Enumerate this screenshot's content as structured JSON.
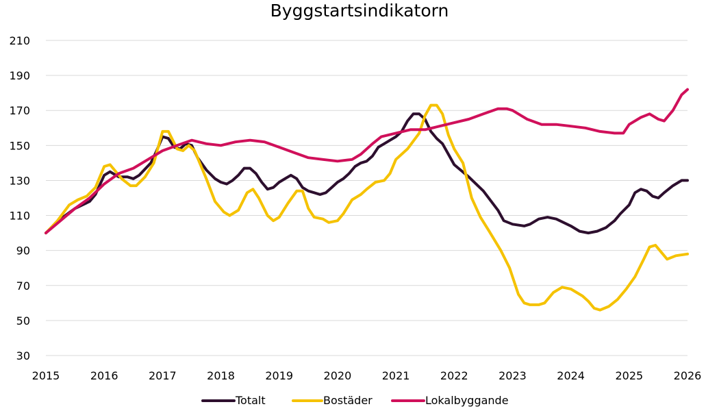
{
  "chart_data": {
    "type": "line",
    "title": "Byggstartsindikatorn",
    "xlabel": "",
    "ylabel": "",
    "ylim": [
      30,
      210
    ],
    "yticks": [
      30,
      50,
      70,
      90,
      110,
      130,
      150,
      170,
      190,
      210
    ],
    "xlim": [
      2015,
      2026
    ],
    "xticks": [
      "2015",
      "2016",
      "2017",
      "2018",
      "2019",
      "2020",
      "2021",
      "2022",
      "2023",
      "2024",
      "2025",
      "2026"
    ],
    "grid": "horizontal",
    "legend": "bottom",
    "series": [
      {
        "name": "Totalt",
        "color": "#2d0f2e",
        "points": [
          [
            2015.0,
            100
          ],
          [
            2015.25,
            108
          ],
          [
            2015.5,
            114
          ],
          [
            2015.75,
            118
          ],
          [
            2015.85,
            122
          ],
          [
            2016.0,
            133
          ],
          [
            2016.1,
            135
          ],
          [
            2016.25,
            132
          ],
          [
            2016.4,
            132
          ],
          [
            2016.5,
            131
          ],
          [
            2016.6,
            133
          ],
          [
            2016.8,
            140
          ],
          [
            2016.9,
            147
          ],
          [
            2017.0,
            155
          ],
          [
            2017.1,
            154
          ],
          [
            2017.2,
            149
          ],
          [
            2017.3,
            148
          ],
          [
            2017.4,
            151
          ],
          [
            2017.5,
            150
          ],
          [
            2017.6,
            143
          ],
          [
            2017.75,
            136
          ],
          [
            2017.9,
            131
          ],
          [
            2018.0,
            129
          ],
          [
            2018.1,
            128
          ],
          [
            2018.2,
            130
          ],
          [
            2018.3,
            133
          ],
          [
            2018.4,
            137
          ],
          [
            2018.5,
            137
          ],
          [
            2018.6,
            134
          ],
          [
            2018.7,
            129
          ],
          [
            2018.8,
            125
          ],
          [
            2018.9,
            126
          ],
          [
            2019.0,
            129
          ],
          [
            2019.1,
            131
          ],
          [
            2019.2,
            133
          ],
          [
            2019.3,
            131
          ],
          [
            2019.4,
            126
          ],
          [
            2019.5,
            124
          ],
          [
            2019.6,
            123
          ],
          [
            2019.7,
            122
          ],
          [
            2019.8,
            123
          ],
          [
            2019.9,
            126
          ],
          [
            2020.0,
            129
          ],
          [
            2020.1,
            131
          ],
          [
            2020.2,
            134
          ],
          [
            2020.3,
            138
          ],
          [
            2020.4,
            140
          ],
          [
            2020.5,
            141
          ],
          [
            2020.6,
            144
          ],
          [
            2020.7,
            149
          ],
          [
            2020.8,
            151
          ],
          [
            2020.9,
            153
          ],
          [
            2021.0,
            155
          ],
          [
            2021.1,
            158
          ],
          [
            2021.2,
            164
          ],
          [
            2021.3,
            168
          ],
          [
            2021.4,
            168
          ],
          [
            2021.5,
            165
          ],
          [
            2021.6,
            158
          ],
          [
            2021.7,
            154
          ],
          [
            2021.8,
            151
          ],
          [
            2021.9,
            145
          ],
          [
            2022.0,
            139
          ],
          [
            2022.25,
            132
          ],
          [
            2022.5,
            124
          ],
          [
            2022.75,
            113
          ],
          [
            2022.85,
            107
          ],
          [
            2023.0,
            105
          ],
          [
            2023.2,
            104
          ],
          [
            2023.3,
            105
          ],
          [
            2023.45,
            108
          ],
          [
            2023.6,
            109
          ],
          [
            2023.75,
            108
          ],
          [
            2024.0,
            104
          ],
          [
            2024.15,
            101
          ],
          [
            2024.3,
            100
          ],
          [
            2024.45,
            101
          ],
          [
            2024.6,
            103
          ],
          [
            2024.75,
            107
          ],
          [
            2024.85,
            111
          ],
          [
            2025.0,
            116
          ],
          [
            2025.1,
            123
          ],
          [
            2025.2,
            125
          ],
          [
            2025.3,
            124
          ],
          [
            2025.4,
            121
          ],
          [
            2025.5,
            120
          ],
          [
            2025.6,
            123
          ],
          [
            2025.75,
            127
          ],
          [
            2025.9,
            130
          ],
          [
            2026.0,
            130
          ]
        ]
      },
      {
        "name": "Bostäder",
        "color": "#f5c200",
        "points": [
          [
            2015.0,
            100
          ],
          [
            2015.2,
            107
          ],
          [
            2015.4,
            116
          ],
          [
            2015.55,
            119
          ],
          [
            2015.7,
            121
          ],
          [
            2015.85,
            126
          ],
          [
            2016.0,
            138
          ],
          [
            2016.1,
            139
          ],
          [
            2016.3,
            131
          ],
          [
            2016.45,
            127
          ],
          [
            2016.55,
            127
          ],
          [
            2016.7,
            132
          ],
          [
            2016.85,
            140
          ],
          [
            2017.0,
            158
          ],
          [
            2017.1,
            158
          ],
          [
            2017.25,
            148
          ],
          [
            2017.35,
            147
          ],
          [
            2017.45,
            150
          ],
          [
            2017.55,
            147
          ],
          [
            2017.75,
            131
          ],
          [
            2017.9,
            118
          ],
          [
            2018.05,
            112
          ],
          [
            2018.15,
            110
          ],
          [
            2018.3,
            113
          ],
          [
            2018.45,
            123
          ],
          [
            2018.55,
            125
          ],
          [
            2018.65,
            120
          ],
          [
            2018.8,
            110
          ],
          [
            2018.9,
            107
          ],
          [
            2019.0,
            109
          ],
          [
            2019.15,
            117
          ],
          [
            2019.3,
            124
          ],
          [
            2019.4,
            124
          ],
          [
            2019.5,
            114
          ],
          [
            2019.6,
            109
          ],
          [
            2019.75,
            108
          ],
          [
            2019.85,
            106
          ],
          [
            2020.0,
            107
          ],
          [
            2020.1,
            111
          ],
          [
            2020.25,
            119
          ],
          [
            2020.4,
            122
          ],
          [
            2020.5,
            125
          ],
          [
            2020.65,
            129
          ],
          [
            2020.8,
            130
          ],
          [
            2020.9,
            134
          ],
          [
            2021.0,
            142
          ],
          [
            2021.2,
            148
          ],
          [
            2021.4,
            157
          ],
          [
            2021.5,
            167
          ],
          [
            2021.6,
            173
          ],
          [
            2021.7,
            173
          ],
          [
            2021.8,
            168
          ],
          [
            2021.9,
            156
          ],
          [
            2022.0,
            148
          ],
          [
            2022.15,
            140
          ],
          [
            2022.3,
            120
          ],
          [
            2022.45,
            109
          ],
          [
            2022.6,
            101
          ],
          [
            2022.8,
            90
          ],
          [
            2022.95,
            80
          ],
          [
            2023.1,
            65
          ],
          [
            2023.2,
            60
          ],
          [
            2023.3,
            59
          ],
          [
            2023.45,
            59
          ],
          [
            2023.55,
            60
          ],
          [
            2023.7,
            66
          ],
          [
            2023.85,
            69
          ],
          [
            2024.0,
            68
          ],
          [
            2024.2,
            64
          ],
          [
            2024.3,
            61
          ],
          [
            2024.4,
            57
          ],
          [
            2024.5,
            56
          ],
          [
            2024.65,
            58
          ],
          [
            2024.8,
            62
          ],
          [
            2024.95,
            68
          ],
          [
            2025.1,
            75
          ],
          [
            2025.25,
            85
          ],
          [
            2025.35,
            92
          ],
          [
            2025.45,
            93
          ],
          [
            2025.55,
            89
          ],
          [
            2025.65,
            85
          ],
          [
            2025.8,
            87
          ],
          [
            2026.0,
            88
          ]
        ]
      },
      {
        "name": "Lokalbyggande",
        "color": "#d0105a",
        "points": [
          [
            2015.0,
            100
          ],
          [
            2015.25,
            107
          ],
          [
            2015.5,
            114
          ],
          [
            2015.75,
            120
          ],
          [
            2016.0,
            128
          ],
          [
            2016.25,
            134
          ],
          [
            2016.5,
            137
          ],
          [
            2016.75,
            142
          ],
          [
            2017.0,
            147
          ],
          [
            2017.25,
            150
          ],
          [
            2017.5,
            153
          ],
          [
            2017.75,
            151
          ],
          [
            2018.0,
            150
          ],
          [
            2018.25,
            152
          ],
          [
            2018.5,
            153
          ],
          [
            2018.75,
            152
          ],
          [
            2019.0,
            149
          ],
          [
            2019.25,
            146
          ],
          [
            2019.5,
            143
          ],
          [
            2019.75,
            142
          ],
          [
            2020.0,
            141
          ],
          [
            2020.25,
            142
          ],
          [
            2020.4,
            145
          ],
          [
            2020.6,
            151
          ],
          [
            2020.75,
            155
          ],
          [
            2021.0,
            157
          ],
          [
            2021.25,
            159
          ],
          [
            2021.5,
            159
          ],
          [
            2021.75,
            161
          ],
          [
            2022.0,
            163
          ],
          [
            2022.25,
            165
          ],
          [
            2022.5,
            168
          ],
          [
            2022.75,
            171
          ],
          [
            2022.9,
            171
          ],
          [
            2023.0,
            170
          ],
          [
            2023.25,
            165
          ],
          [
            2023.5,
            162
          ],
          [
            2023.75,
            162
          ],
          [
            2024.0,
            161
          ],
          [
            2024.25,
            160
          ],
          [
            2024.5,
            158
          ],
          [
            2024.75,
            157
          ],
          [
            2024.9,
            157
          ],
          [
            2025.0,
            162
          ],
          [
            2025.2,
            166
          ],
          [
            2025.35,
            168
          ],
          [
            2025.5,
            165
          ],
          [
            2025.6,
            164
          ],
          [
            2025.75,
            170
          ],
          [
            2025.9,
            179
          ],
          [
            2026.0,
            182
          ]
        ]
      }
    ]
  }
}
